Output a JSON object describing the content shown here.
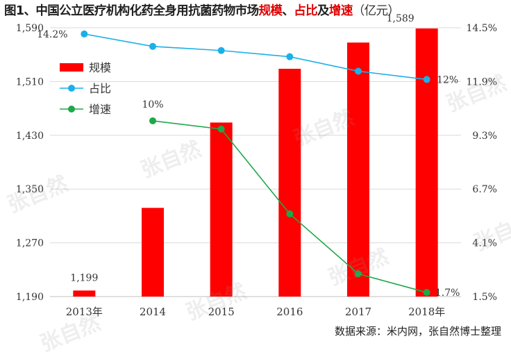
{
  "title": {
    "prefix": "图1、中国公立医疗机构化药全身用抗菌药物市场",
    "highlight1": "规模",
    "sep": "、",
    "highlight2": "占比",
    "joiner": "及",
    "highlight3": "增速",
    "unit": "（亿元）"
  },
  "source": "数据来源：米内网，张自然博士整理",
  "watermark": "张自然",
  "colors": {
    "bar": "#ff0000",
    "share_line": "#1ab0e8",
    "growth_line": "#1ea84a",
    "grid": "#d9d9d9",
    "title_highlight": "#e00000"
  },
  "chart_data": {
    "type": "bar",
    "categories": [
      "2013年",
      "2014",
      "2015",
      "2016",
      "2017",
      "2018年"
    ],
    "series": [
      {
        "name": "规模",
        "type": "bar",
        "axis": "left",
        "values": [
          1199,
          1322,
          1449,
          1529,
          1568,
          1589
        ]
      },
      {
        "name": "占比",
        "type": "line",
        "axis": "right",
        "values": [
          14.2,
          13.6,
          13.4,
          13.1,
          12.4,
          12.0
        ]
      },
      {
        "name": "增速",
        "type": "line",
        "axis": "right",
        "values": [
          null,
          10.0,
          9.6,
          5.5,
          2.6,
          1.7
        ]
      }
    ],
    "left_axis": {
      "range": [
        1190,
        1590
      ],
      "ticks": [
        1190,
        1270,
        1350,
        1430,
        1510,
        1590
      ],
      "tick_labels": [
        "1,190",
        "1,270",
        "1,350",
        "1,430",
        "1,510",
        "1,590"
      ]
    },
    "right_axis": {
      "range": [
        1.5,
        14.5
      ],
      "ticks": [
        1.5,
        4.1,
        6.7,
        9.3,
        11.9,
        14.5
      ],
      "tick_labels": [
        "1.5%",
        "4.1%",
        "6.7%",
        "9.3%",
        "11.9%",
        "14.5%"
      ]
    },
    "data_labels": [
      {
        "series": "规模",
        "index": 0,
        "text": "1,199"
      },
      {
        "series": "规模",
        "index": 5,
        "text": "1,589"
      },
      {
        "series": "占比",
        "index": 0,
        "text": "14.2%"
      },
      {
        "series": "占比",
        "index": 5,
        "text": "12%"
      },
      {
        "series": "增速",
        "index": 1,
        "text": "10%"
      },
      {
        "series": "增速",
        "index": 5,
        "text": "1.7%"
      }
    ],
    "legend": {
      "placement": "left",
      "entries": [
        "规模",
        "占比",
        "增速"
      ]
    },
    "grid": true
  }
}
